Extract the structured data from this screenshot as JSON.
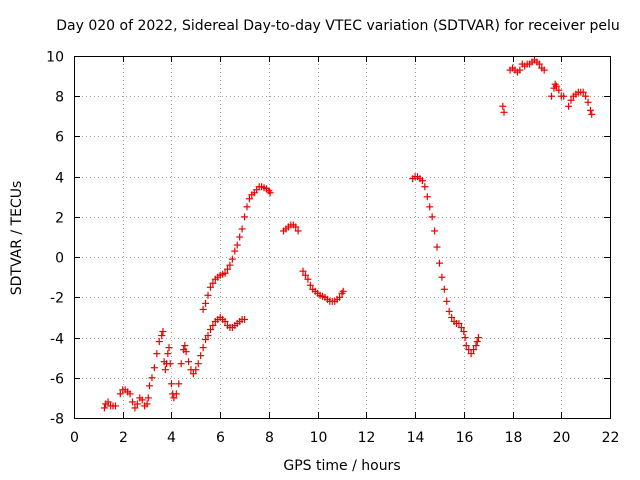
{
  "chart_data": {
    "type": "scatter",
    "title": "Day 020 of 2022, Sidereal Day-to-day VTEC variation (SDTVAR) for receiver pelu",
    "xlabel": "GPS time / hours",
    "ylabel": "SDTVAR / TECUs",
    "xlim": [
      0,
      22
    ],
    "ylim": [
      -8,
      10
    ],
    "xticks": [
      "0",
      "2",
      "4",
      "6",
      "8",
      "10",
      "12",
      "14",
      "16",
      "18",
      "20",
      "22"
    ],
    "yticks": [
      "-8",
      "-6",
      "-4",
      "-2",
      "0",
      "2",
      "4",
      "6",
      "8",
      "10"
    ],
    "grid": true,
    "marker": "plus",
    "color": "#ee0000",
    "series": [
      {
        "name": "SDTVAR",
        "points": [
          [
            1.25,
            -7.5
          ],
          [
            1.3,
            -7.3
          ],
          [
            1.4,
            -7.2
          ],
          [
            1.5,
            -7.4
          ],
          [
            1.6,
            -7.4
          ],
          [
            1.7,
            -7.4
          ],
          [
            1.9,
            -6.8
          ],
          [
            2.0,
            -6.6
          ],
          [
            2.1,
            -6.6
          ],
          [
            2.2,
            -6.7
          ],
          [
            2.3,
            -6.8
          ],
          [
            2.4,
            -7.2
          ],
          [
            2.5,
            -7.5
          ],
          [
            2.6,
            -7.3
          ],
          [
            2.7,
            -7.0
          ],
          [
            2.8,
            -7.1
          ],
          [
            2.9,
            -7.4
          ],
          [
            3.0,
            -7.3
          ],
          [
            3.05,
            -7.0
          ],
          [
            3.1,
            -6.4
          ],
          [
            3.2,
            -6.0
          ],
          [
            3.3,
            -5.5
          ],
          [
            3.4,
            -4.8
          ],
          [
            3.5,
            -4.2
          ],
          [
            3.6,
            -3.9
          ],
          [
            3.65,
            -3.7
          ],
          [
            3.7,
            -5.2
          ],
          [
            3.75,
            -5.6
          ],
          [
            3.8,
            -5.3
          ],
          [
            3.85,
            -4.8
          ],
          [
            3.9,
            -4.5
          ],
          [
            3.95,
            -5.3
          ],
          [
            4.0,
            -6.3
          ],
          [
            4.05,
            -6.8
          ],
          [
            4.1,
            -7.0
          ],
          [
            4.2,
            -6.8
          ],
          [
            4.3,
            -6.3
          ],
          [
            4.4,
            -5.3
          ],
          [
            4.5,
            -4.6
          ],
          [
            4.55,
            -4.4
          ],
          [
            4.6,
            -4.7
          ],
          [
            4.7,
            -5.2
          ],
          [
            4.8,
            -5.6
          ],
          [
            4.9,
            -5.8
          ],
          [
            5.0,
            -5.6
          ],
          [
            5.1,
            -5.3
          ],
          [
            5.2,
            -4.9
          ],
          [
            5.3,
            -4.5
          ],
          [
            5.4,
            -4.1
          ],
          [
            5.5,
            -3.9
          ],
          [
            5.6,
            -3.6
          ],
          [
            5.7,
            -3.4
          ],
          [
            5.8,
            -3.2
          ],
          [
            5.9,
            -3.1
          ],
          [
            6.0,
            -3.0
          ],
          [
            6.1,
            -3.1
          ],
          [
            6.2,
            -3.2
          ],
          [
            6.3,
            -3.4
          ],
          [
            6.4,
            -3.5
          ],
          [
            6.5,
            -3.5
          ],
          [
            6.6,
            -3.4
          ],
          [
            6.7,
            -3.3
          ],
          [
            6.8,
            -3.2
          ],
          [
            6.9,
            -3.1
          ],
          [
            7.0,
            -3.1
          ],
          [
            5.3,
            -2.6
          ],
          [
            5.4,
            -2.3
          ],
          [
            5.5,
            -1.9
          ],
          [
            5.6,
            -1.5
          ],
          [
            5.7,
            -1.3
          ],
          [
            5.8,
            -1.1
          ],
          [
            5.9,
            -1.0
          ],
          [
            6.0,
            -0.9
          ],
          [
            6.1,
            -0.85
          ],
          [
            6.2,
            -0.8
          ],
          [
            6.3,
            -0.6
          ],
          [
            6.4,
            -0.4
          ],
          [
            6.5,
            -0.1
          ],
          [
            6.6,
            0.3
          ],
          [
            6.7,
            0.6
          ],
          [
            6.8,
            1.0
          ],
          [
            6.9,
            1.4
          ],
          [
            7.0,
            2.0
          ],
          [
            7.1,
            2.5
          ],
          [
            7.2,
            2.9
          ],
          [
            7.3,
            3.1
          ],
          [
            7.4,
            3.2
          ],
          [
            7.5,
            3.35
          ],
          [
            7.6,
            3.5
          ],
          [
            7.7,
            3.5
          ],
          [
            7.8,
            3.45
          ],
          [
            7.9,
            3.4
          ],
          [
            8.0,
            3.3
          ],
          [
            8.05,
            3.2
          ],
          [
            8.6,
            1.3
          ],
          [
            8.7,
            1.4
          ],
          [
            8.8,
            1.5
          ],
          [
            8.9,
            1.6
          ],
          [
            9.0,
            1.6
          ],
          [
            9.1,
            1.5
          ],
          [
            9.2,
            1.3
          ],
          [
            9.4,
            -0.7
          ],
          [
            9.5,
            -0.9
          ],
          [
            9.6,
            -1.1
          ],
          [
            9.7,
            -1.4
          ],
          [
            9.8,
            -1.6
          ],
          [
            9.9,
            -1.7
          ],
          [
            10.0,
            -1.8
          ],
          [
            10.1,
            -1.9
          ],
          [
            10.2,
            -1.95
          ],
          [
            10.3,
            -2.0
          ],
          [
            10.4,
            -2.1
          ],
          [
            10.5,
            -2.2
          ],
          [
            10.6,
            -2.2
          ],
          [
            10.7,
            -2.2
          ],
          [
            10.8,
            -2.1
          ],
          [
            10.9,
            -2.0
          ],
          [
            11.0,
            -1.8
          ],
          [
            11.05,
            -1.7
          ],
          [
            13.9,
            3.9
          ],
          [
            14.0,
            4.0
          ],
          [
            14.1,
            4.0
          ],
          [
            14.2,
            3.9
          ],
          [
            14.3,
            3.8
          ],
          [
            14.4,
            3.5
          ],
          [
            14.5,
            3.0
          ],
          [
            14.6,
            2.5
          ],
          [
            14.7,
            2.0
          ],
          [
            14.8,
            1.3
          ],
          [
            14.9,
            0.5
          ],
          [
            15.0,
            -0.3
          ],
          [
            15.1,
            -1.0
          ],
          [
            15.2,
            -1.6
          ],
          [
            15.3,
            -2.2
          ],
          [
            15.4,
            -2.7
          ],
          [
            15.5,
            -3.0
          ],
          [
            15.6,
            -3.2
          ],
          [
            15.7,
            -3.3
          ],
          [
            15.8,
            -3.3
          ],
          [
            15.9,
            -3.5
          ],
          [
            16.0,
            -3.7
          ],
          [
            16.05,
            -4.0
          ],
          [
            16.1,
            -4.4
          ],
          [
            16.2,
            -4.6
          ],
          [
            16.3,
            -4.8
          ],
          [
            16.4,
            -4.6
          ],
          [
            16.5,
            -4.4
          ],
          [
            16.55,
            -4.2
          ],
          [
            16.6,
            -4.0
          ],
          [
            17.6,
            7.5
          ],
          [
            17.65,
            7.2
          ],
          [
            17.9,
            9.3
          ],
          [
            18.0,
            9.4
          ],
          [
            18.1,
            9.3
          ],
          [
            18.2,
            9.2
          ],
          [
            18.3,
            9.3
          ],
          [
            18.4,
            9.6
          ],
          [
            18.5,
            9.5
          ],
          [
            18.6,
            9.6
          ],
          [
            18.7,
            9.6
          ],
          [
            18.8,
            9.7
          ],
          [
            18.9,
            9.8
          ],
          [
            19.0,
            9.7
          ],
          [
            19.1,
            9.6
          ],
          [
            19.2,
            9.4
          ],
          [
            19.3,
            9.3
          ],
          [
            19.6,
            8.0
          ],
          [
            19.7,
            8.4
          ],
          [
            19.75,
            8.6
          ],
          [
            19.8,
            8.5
          ],
          [
            19.9,
            8.3
          ],
          [
            20.0,
            8.0
          ],
          [
            20.1,
            8.0
          ],
          [
            20.3,
            7.5
          ],
          [
            20.4,
            7.8
          ],
          [
            20.5,
            8.0
          ],
          [
            20.6,
            8.1
          ],
          [
            20.7,
            8.2
          ],
          [
            20.8,
            8.2
          ],
          [
            20.9,
            8.2
          ],
          [
            21.0,
            8.0
          ],
          [
            21.1,
            7.7
          ],
          [
            21.2,
            7.3
          ],
          [
            21.25,
            7.1
          ]
        ]
      }
    ]
  }
}
